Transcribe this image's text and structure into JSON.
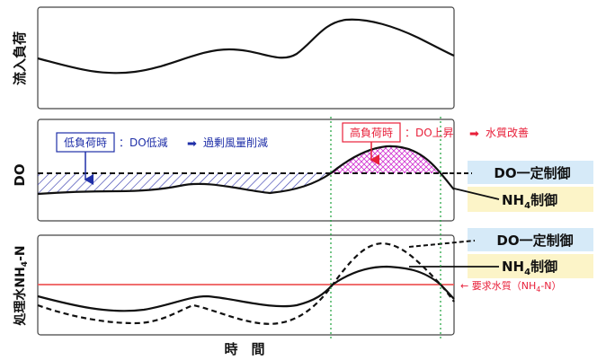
{
  "panels": {
    "top": {
      "ylabel": "流入負荷"
    },
    "middle": {
      "ylabel": "DO",
      "low_load": {
        "label": "低負荷時",
        "text": "：DO低減",
        "result": "過剰風量削減"
      },
      "high_load": {
        "label": "高負荷時",
        "text": "：DO上昇",
        "result": "水質改善"
      },
      "legend": {
        "const": "DO一定制御",
        "nh4_prefix": "NH",
        "nh4_sub": "4",
        "nh4_suffix": "制御"
      }
    },
    "bottom": {
      "ylabel_prefix": "処理水NH",
      "ylabel_sub": "4",
      "ylabel_suffix": "-N",
      "legend": {
        "const": "DO一定制御",
        "nh4_prefix": "NH",
        "nh4_sub": "4",
        "nh4_suffix": "制御"
      },
      "requirement": {
        "prefix": "← 要求水質（NH",
        "sub": "4",
        "suffix": "-N）"
      }
    }
  },
  "xlabel": "時　間",
  "colors": {
    "blue": "#1f2fa8",
    "red": "#e8203a",
    "magenta": "#d23ad2",
    "green_guide": "#1aa03a",
    "legend_bg": "#d6eaf8",
    "legend_bg2": "#fcf4c8",
    "req_line": "#ee5a5a"
  }
}
